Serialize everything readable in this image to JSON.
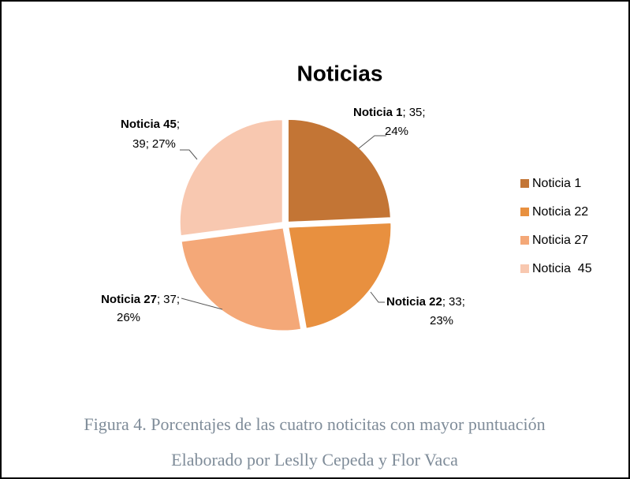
{
  "chart_data": {
    "type": "pie",
    "title": "Noticias",
    "categories": [
      "Noticia 1",
      "Noticia 22",
      "Noticia 27",
      "Noticia  45"
    ],
    "values": [
      35,
      33,
      37,
      39
    ],
    "percent_labels": [
      "24%",
      "23%",
      "26%",
      "27%"
    ],
    "separator": ";",
    "colors": [
      "#c37535",
      "#e8903f",
      "#f4a878",
      "#f8c8b0"
    ],
    "legend": "right"
  },
  "caption": {
    "line1": "Figura 4. Porcentajes de las cuatro noticitas con mayor puntuación",
    "line2": "Elaborado por Leslly Cepeda y Flor Vaca"
  }
}
